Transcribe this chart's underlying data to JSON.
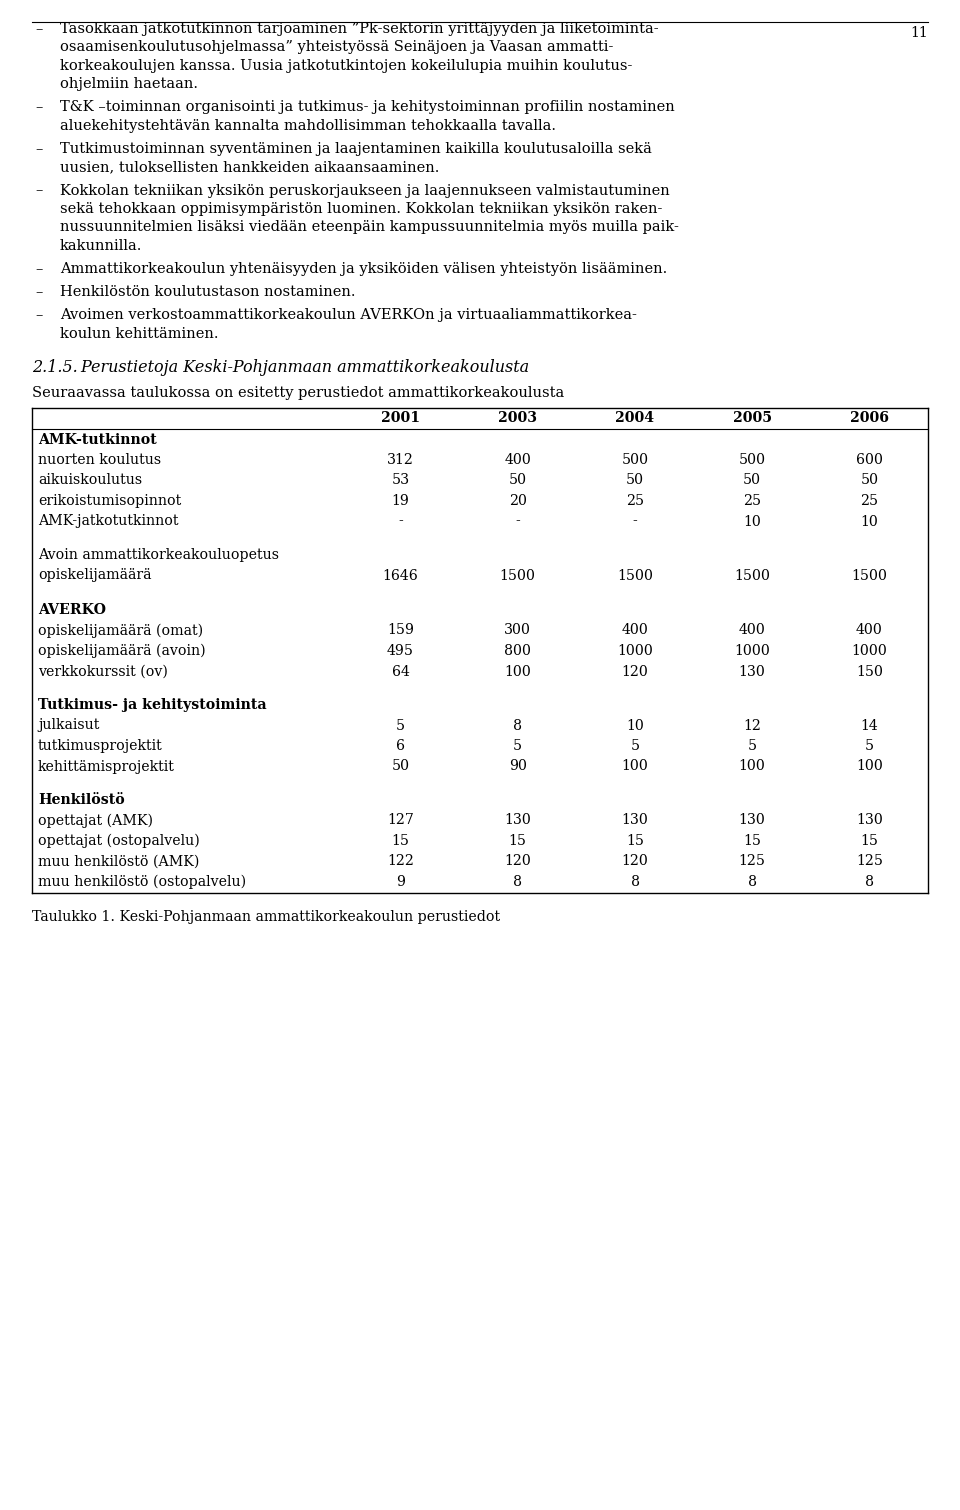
{
  "bg_color": "#ffffff",
  "text_color": "#000000",
  "bullet_items": [
    [
      "Tasokkaan jatkotutkinnon tarjoaminen ”Pk-sektorin yrittäjyyden ja liiketoiminta-",
      "osaamisenkoulutusohjelmassa” yhteistyössä Seinäjoen ja Vaasan ammatti-",
      "korkeakoulujen kanssa. Uusia jatkotutkintojen kokeilulupia muihin koulutus-",
      "ohjelmiin haetaan."
    ],
    [
      "T&K –toiminnan organisointi ja tutkimus- ja kehitystoiminnan profiilin nostaminen",
      "aluekehitystehtävän kannalta mahdollisimman tehokkaalla tavalla."
    ],
    [
      "Tutkimustoiminnan syventäminen ja laajentaminen kaikilla koulutusaloilla sekä",
      "uusien, tuloksellisten hankkeiden aikaansaaminen."
    ],
    [
      "Kokkolan tekniikan yksikön peruskorjaukseen ja laajennukseen valmistautuminen",
      "sekä tehokkaan oppimisympäristön luominen. Kokkolan tekniikan yksikön raken-",
      "nussuunnitelmien lisäksi viedään eteenpäin kampussuunnitelmia myös muilla paik-",
      "kakunnilla."
    ],
    [
      "Ammattikorkeakoulun yhtenäisyyden ja yksiköiden välisen yhteistyön lisääminen."
    ],
    [
      "Henkilöstön koulutustason nostaminen."
    ],
    [
      "Avoimen verkostoammattikorkeakoulun AVERKOn ja virtuaaliammattikorkea-",
      "koulun kehittäminen."
    ]
  ],
  "section_title": "2.1.5. Perustietoja Keski-Pohjanmaan ammattikorkeakoulusta",
  "intro_text": "Seuraavassa taulukossa on esitetty perustiedot ammattikorkeakoulusta",
  "table_headers": [
    "2001",
    "2003",
    "2004",
    "2005",
    "2006"
  ],
  "table_rows": [
    {
      "label": "AMK-tutkinnot",
      "bold": true,
      "values": null,
      "spacer_after": false
    },
    {
      "label": "nuorten koulutus",
      "bold": false,
      "values": [
        "312",
        "400",
        "500",
        "500",
        "600"
      ],
      "spacer_after": false
    },
    {
      "label": "aikuiskoulutus",
      "bold": false,
      "values": [
        "53",
        "50",
        "50",
        "50",
        "50"
      ],
      "spacer_after": false
    },
    {
      "label": "erikoistumisopinnot",
      "bold": false,
      "values": [
        "19",
        "20",
        "25",
        "25",
        "25"
      ],
      "spacer_after": false
    },
    {
      "label": "AMK-jatkotutkinnot",
      "bold": false,
      "values": [
        "-",
        "-",
        "-",
        "10",
        "10"
      ],
      "spacer_after": true
    },
    {
      "label": "Avoin ammattikorkeakouluopetus",
      "label2": "opiskelijamäärä",
      "bold": false,
      "values": [
        "1646",
        "1500",
        "1500",
        "1500",
        "1500"
      ],
      "two_line_label": true,
      "spacer_after": true
    },
    {
      "label": "AVERKO",
      "bold": true,
      "values": null,
      "spacer_after": false
    },
    {
      "label": "opiskelijamäärä (omat)",
      "bold": false,
      "values": [
        "159",
        "300",
        "400",
        "400",
        "400"
      ],
      "spacer_after": false
    },
    {
      "label": "opiskelijamäärä (avoin)",
      "bold": false,
      "values": [
        "495",
        "800",
        "1000",
        "1000",
        "1000"
      ],
      "spacer_after": false
    },
    {
      "label": "verkkokurssit (ov)",
      "bold": false,
      "values": [
        "64",
        "100",
        "120",
        "130",
        "150"
      ],
      "spacer_after": true
    },
    {
      "label": "Tutkimus- ja kehitystoiminta",
      "bold": true,
      "values": null,
      "spacer_after": false
    },
    {
      "label": "julkaisut",
      "bold": false,
      "values": [
        "5",
        "8",
        "10",
        "12",
        "14"
      ],
      "spacer_after": false
    },
    {
      "label": "tutkimusprojektit",
      "bold": false,
      "values": [
        "6",
        "5",
        "5",
        "5",
        "5"
      ],
      "spacer_after": false
    },
    {
      "label": "kehittämisprojektit",
      "bold": false,
      "values": [
        "50",
        "90",
        "100",
        "100",
        "100"
      ],
      "spacer_after": true
    },
    {
      "label": "Henkilöstö",
      "bold": true,
      "values": null,
      "spacer_after": false
    },
    {
      "label": "opettajat (AMK)",
      "bold": false,
      "values": [
        "127",
        "130",
        "130",
        "130",
        "130"
      ],
      "spacer_after": false
    },
    {
      "label": "opettajat (ostopalvelu)",
      "bold": false,
      "values": [
        "15",
        "15",
        "15",
        "15",
        "15"
      ],
      "spacer_after": false
    },
    {
      "label": "muu henkilöstö (AMK)",
      "bold": false,
      "values": [
        "122",
        "120",
        "120",
        "125",
        "125"
      ],
      "spacer_after": false
    },
    {
      "label": "muu henkilöstö (ostopalvelu)",
      "bold": false,
      "values": [
        "9",
        "8",
        "8",
        "8",
        "8"
      ],
      "spacer_after": false
    }
  ],
  "caption": "Taulukko 1. Keski-Pohjanmaan ammattikorkeakoulun perustiedot",
  "page_number": "11"
}
